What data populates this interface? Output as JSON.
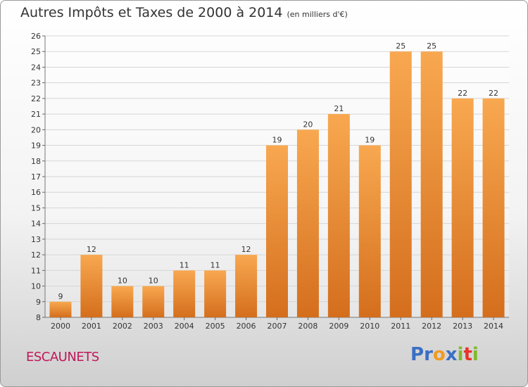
{
  "title": "Autres Impôts et Taxes de 2000 à 2014",
  "unit": "(en milliers d'€)",
  "commune": "ESCAUNETS",
  "logo": {
    "letters": [
      "P",
      "r",
      "o",
      "x",
      "i",
      "t",
      "i"
    ],
    "colors": [
      "#3a6fc4",
      "#3a6fc4",
      "#f29a1f",
      "#3a6fc4",
      "#7fba2a",
      "#e8332a",
      "#7fba2a"
    ]
  },
  "colors": {
    "bar_light": "#f7a54e",
    "bar_dark": "#d86f1c",
    "commune": "#c0185a"
  },
  "chart_data": {
    "type": "bar",
    "categories": [
      "2000",
      "2001",
      "2002",
      "2003",
      "2004",
      "2005",
      "2006",
      "2007",
      "2008",
      "2009",
      "2010",
      "2011",
      "2012",
      "2013",
      "2014"
    ],
    "values": [
      9,
      12,
      10,
      10,
      11,
      11,
      12,
      19,
      20,
      21,
      19,
      25,
      25,
      22,
      22
    ],
    "ylim": [
      8,
      26
    ],
    "yticks": [
      8,
      9,
      10,
      11,
      12,
      13,
      14,
      15,
      16,
      17,
      18,
      19,
      20,
      21,
      22,
      23,
      24,
      25,
      26
    ],
    "grid": true,
    "xlabel": "",
    "ylabel": ""
  }
}
